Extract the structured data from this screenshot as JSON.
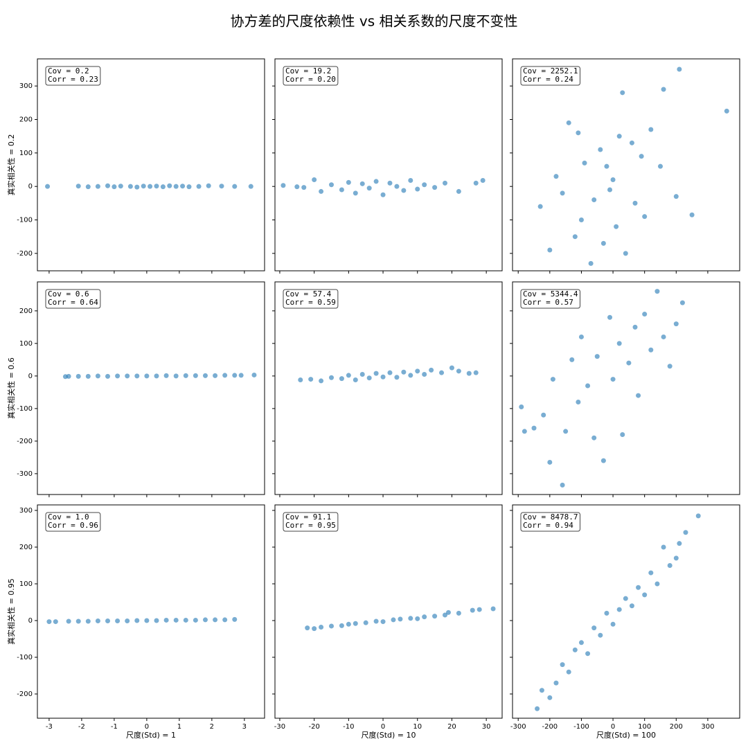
{
  "title": "协方差的尺度依赖性 vs 相关系数的尺度不变性",
  "chart_data": [
    {
      "type": "scatter",
      "color": "#1f77b4",
      "annotation": [
        "Cov = 0.2",
        "Corr = 0.23"
      ],
      "ylabel": "真实相关性 = 0.2",
      "xlim": [
        -3.36,
        3.62
      ],
      "ylim": [
        -252,
        381
      ],
      "yticks": [
        -200,
        -100,
        0,
        100,
        200,
        300
      ],
      "x": [
        -3.05,
        -2.1,
        -1.8,
        -1.5,
        -1.2,
        -1.0,
        -0.8,
        -0.5,
        -0.3,
        -0.1,
        0.1,
        0.3,
        0.5,
        0.7,
        0.9,
        1.1,
        1.3,
        1.6,
        1.9,
        2.3,
        2.7,
        3.2
      ],
      "y": [
        0,
        1,
        -1,
        0,
        2,
        -1,
        1,
        0,
        -2,
        1,
        0,
        1,
        -1,
        2,
        0,
        1,
        -1,
        0,
        2,
        1,
        0,
        0
      ]
    },
    {
      "type": "scatter",
      "color": "#1f77b4",
      "annotation": [
        "Cov = 19.2",
        "Corr = 0.20"
      ],
      "xlim": [
        -31.4,
        34.6
      ],
      "ylim": [
        -252,
        381
      ],
      "x": [
        -29,
        -25,
        -23,
        -20,
        -18,
        -15,
        -12,
        -10,
        -8,
        -6,
        -4,
        -2,
        0,
        2,
        4,
        6,
        8,
        10,
        12,
        15,
        18,
        22,
        27,
        29
      ],
      "y": [
        3,
        -1,
        -3,
        20,
        -15,
        5,
        -10,
        12,
        -20,
        8,
        -5,
        15,
        -25,
        10,
        0,
        -12,
        18,
        -8,
        5,
        -3,
        10,
        -15,
        10,
        18
      ]
    },
    {
      "type": "scatter",
      "color": "#1f77b4",
      "annotation": [
        "Cov = 2252.1",
        "Corr = 0.24"
      ],
      "xlim": [
        -318,
        401
      ],
      "ylim": [
        -252,
        381
      ],
      "x": [
        -230,
        -200,
        -180,
        -160,
        -140,
        -120,
        -110,
        -100,
        -90,
        -70,
        -60,
        -40,
        -30,
        -20,
        -10,
        0,
        10,
        20,
        30,
        40,
        60,
        70,
        90,
        100,
        120,
        150,
        160,
        200,
        210,
        250,
        360
      ],
      "y": [
        -60,
        -190,
        30,
        -20,
        190,
        -150,
        160,
        -100,
        70,
        -230,
        -40,
        110,
        -170,
        60,
        -10,
        20,
        -120,
        150,
        280,
        -200,
        130,
        -50,
        90,
        -90,
        170,
        60,
        290,
        -30,
        350,
        -85,
        225
      ]
    },
    {
      "type": "scatter",
      "color": "#1f77b4",
      "annotation": [
        "Cov = 0.6",
        "Corr = 0.64"
      ],
      "ylabel": "真实相关性 = 0.6",
      "xlim": [
        -3.36,
        3.62
      ],
      "ylim": [
        -364,
        289
      ],
      "yticks": [
        -300,
        -200,
        -100,
        0,
        100,
        200
      ],
      "x": [
        -2.5,
        -2.4,
        -2.1,
        -1.8,
        -1.5,
        -1.2,
        -0.9,
        -0.6,
        -0.3,
        0,
        0.3,
        0.6,
        0.9,
        1.2,
        1.5,
        1.8,
        2.1,
        2.4,
        2.7,
        2.9,
        3.3
      ],
      "y": [
        -2,
        -1,
        -1,
        -1,
        0,
        -1,
        0,
        0,
        0,
        0,
        0,
        1,
        0,
        1,
        1,
        1,
        1,
        2,
        2,
        2,
        3
      ]
    },
    {
      "type": "scatter",
      "color": "#1f77b4",
      "annotation": [
        "Cov = 57.4",
        "Corr = 0.59"
      ],
      "xlim": [
        -31.4,
        34.6
      ],
      "ylim": [
        -364,
        289
      ],
      "x": [
        -24,
        -21,
        -18,
        -15,
        -12,
        -10,
        -8,
        -6,
        -4,
        -2,
        0,
        2,
        4,
        6,
        8,
        10,
        12,
        14,
        17,
        20,
        22,
        25,
        27
      ],
      "y": [
        -12,
        -10,
        -15,
        -5,
        -8,
        2,
        -12,
        5,
        -6,
        8,
        -3,
        10,
        -4,
        12,
        2,
        15,
        5,
        18,
        10,
        25,
        15,
        8,
        10
      ]
    },
    {
      "type": "scatter",
      "color": "#1f77b4",
      "annotation": [
        "Cov = 5344.4",
        "Corr = 0.57"
      ],
      "xlim": [
        -318,
        401
      ],
      "ylim": [
        -364,
        289
      ],
      "x": [
        -290,
        -280,
        -250,
        -220,
        -200,
        -190,
        -160,
        -150,
        -130,
        -110,
        -100,
        -80,
        -60,
        -50,
        -30,
        -10,
        0,
        20,
        30,
        50,
        70,
        80,
        100,
        120,
        140,
        160,
        180,
        200,
        220
      ],
      "y": [
        -95,
        -170,
        -160,
        -120,
        -265,
        -10,
        -335,
        -170,
        50,
        -80,
        120,
        -30,
        -190,
        60,
        -260,
        180,
        -10,
        100,
        -180,
        40,
        150,
        -60,
        190,
        80,
        260,
        120,
        30,
        160,
        225
      ]
    },
    {
      "type": "scatter",
      "color": "#1f77b4",
      "annotation": [
        "Cov = 1.0",
        "Corr = 0.96"
      ],
      "ylabel": "真实相关性 = 0.95",
      "xlabel": "尺度(Std) = 1",
      "xlim": [
        -3.36,
        3.62
      ],
      "ylim": [
        -266,
        315
      ],
      "xticks": [
        -3,
        -2,
        -1,
        0,
        1,
        2,
        3
      ],
      "yticks": [
        -200,
        -100,
        0,
        100,
        200,
        300
      ],
      "x": [
        -3.0,
        -2.8,
        -2.4,
        -2.1,
        -1.8,
        -1.5,
        -1.2,
        -0.9,
        -0.6,
        -0.3,
        0,
        0.3,
        0.6,
        0.9,
        1.2,
        1.5,
        1.8,
        2.1,
        2.4,
        2.7
      ],
      "y": [
        -3,
        -3,
        -2,
        -2,
        -2,
        -1,
        -1,
        -1,
        -1,
        0,
        0,
        0,
        1,
        1,
        1,
        1,
        2,
        2,
        2,
        3
      ]
    },
    {
      "type": "scatter",
      "color": "#1f77b4",
      "annotation": [
        "Cov = 91.1",
        "Corr = 0.95"
      ],
      "xlabel": "尺度(Std) = 10",
      "xlim": [
        -31.4,
        34.6
      ],
      "ylim": [
        -266,
        315
      ],
      "xticks": [
        -30,
        -20,
        -10,
        0,
        10,
        20,
        30
      ],
      "x": [
        -22,
        -20,
        -18,
        -15,
        -12,
        -10,
        -8,
        -5,
        -2,
        0,
        3,
        5,
        8,
        10,
        12,
        15,
        18,
        19,
        22,
        26,
        28,
        32
      ],
      "y": [
        -20,
        -22,
        -18,
        -15,
        -14,
        -10,
        -8,
        -6,
        -2,
        -3,
        2,
        4,
        6,
        5,
        10,
        12,
        15,
        22,
        20,
        28,
        30,
        32
      ]
    },
    {
      "type": "scatter",
      "color": "#1f77b4",
      "annotation": [
        "Cov = 8478.7",
        "Corr = 0.94"
      ],
      "xlabel": "尺度(Std) = 100",
      "xlim": [
        -318,
        401
      ],
      "ylim": [
        -266,
        315
      ],
      "xticks": [
        -300,
        -200,
        -100,
        0,
        100,
        200,
        300
      ],
      "x": [
        -240,
        -225,
        -200,
        -180,
        -160,
        -140,
        -120,
        -100,
        -80,
        -60,
        -40,
        -20,
        0,
        20,
        40,
        60,
        80,
        100,
        120,
        140,
        160,
        180,
        200,
        210,
        230,
        270
      ],
      "y": [
        -240,
        -190,
        -210,
        -170,
        -120,
        -140,
        -80,
        -60,
        -90,
        -20,
        -40,
        20,
        -10,
        30,
        60,
        40,
        90,
        70,
        130,
        100,
        200,
        150,
        170,
        210,
        240,
        285
      ]
    }
  ]
}
